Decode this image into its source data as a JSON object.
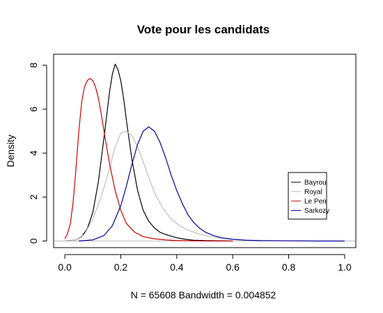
{
  "chart_data": {
    "type": "line",
    "title": "Vote pour les candidats",
    "xlabel": "N = 65608   Bandwidth = 0.004852",
    "ylabel": "Density",
    "xlim": [
      -0.04,
      1.04
    ],
    "ylim": [
      -0.3,
      8.5
    ],
    "x_ticks": [
      0.0,
      0.2,
      0.4,
      0.6,
      0.8,
      1.0
    ],
    "x_tick_labels": [
      "0.0",
      "0.2",
      "0.4",
      "0.6",
      "0.8",
      "1.0"
    ],
    "y_ticks": [
      0,
      2,
      4,
      6,
      8
    ],
    "y_tick_labels": [
      "0",
      "2",
      "4",
      "6",
      "8"
    ],
    "zero_line_color": "#bebebe",
    "legend": {
      "position": "right",
      "entries": [
        "Bayrou",
        "Royal",
        "Le Pen",
        "Sarkozy"
      ]
    },
    "series": [
      {
        "name": "Bayrou",
        "color": "#000000",
        "x": [
          0.0,
          0.04,
          0.06,
          0.08,
          0.1,
          0.12,
          0.14,
          0.16,
          0.17,
          0.18,
          0.19,
          0.2,
          0.21,
          0.22,
          0.24,
          0.26,
          0.28,
          0.3,
          0.32,
          0.34,
          0.36,
          0.38,
          0.4,
          0.43,
          0.46,
          0.5,
          0.55,
          0.6
        ],
        "y": [
          0.0,
          0.05,
          0.2,
          0.55,
          1.3,
          2.7,
          4.7,
          6.8,
          7.6,
          8.05,
          7.8,
          7.3,
          6.5,
          5.5,
          3.7,
          2.3,
          1.4,
          0.9,
          0.6,
          0.4,
          0.3,
          0.22,
          0.15,
          0.08,
          0.04,
          0.02,
          0.01,
          0.0
        ]
      },
      {
        "name": "Royal",
        "color": "#bebebe",
        "x": [
          0.0,
          0.04,
          0.07,
          0.1,
          0.13,
          0.16,
          0.18,
          0.2,
          0.22,
          0.24,
          0.26,
          0.28,
          0.3,
          0.32,
          0.35,
          0.38,
          0.41,
          0.44,
          0.48,
          0.52,
          0.56,
          0.6,
          0.65,
          0.7
        ],
        "y": [
          0.0,
          0.05,
          0.3,
          1.0,
          2.0,
          3.3,
          4.3,
          4.9,
          5.0,
          4.8,
          4.3,
          3.6,
          2.9,
          2.2,
          1.5,
          1.0,
          0.7,
          0.5,
          0.32,
          0.2,
          0.12,
          0.07,
          0.03,
          0.0
        ]
      },
      {
        "name": "Le Pen",
        "color": "#cc0000",
        "x": [
          0.0,
          0.01,
          0.02,
          0.03,
          0.04,
          0.05,
          0.06,
          0.07,
          0.08,
          0.09,
          0.1,
          0.11,
          0.12,
          0.13,
          0.14,
          0.16,
          0.18,
          0.2,
          0.22,
          0.25,
          0.28,
          0.32,
          0.36,
          0.4,
          0.45,
          0.5,
          0.6
        ],
        "y": [
          0.1,
          0.35,
          0.8,
          1.8,
          3.3,
          5.0,
          6.3,
          7.0,
          7.3,
          7.4,
          7.3,
          7.0,
          6.5,
          5.8,
          5.0,
          3.5,
          2.3,
          1.4,
          0.8,
          0.4,
          0.2,
          0.1,
          0.05,
          0.02,
          0.01,
          0.0,
          0.0
        ]
      },
      {
        "name": "Sarkozy",
        "color": "#000099",
        "x": [
          0.05,
          0.1,
          0.14,
          0.17,
          0.2,
          0.22,
          0.24,
          0.26,
          0.28,
          0.3,
          0.32,
          0.34,
          0.36,
          0.38,
          0.4,
          0.42,
          0.44,
          0.46,
          0.48,
          0.5,
          0.53,
          0.56,
          0.6,
          0.65,
          0.7,
          0.8,
          0.9,
          1.0
        ],
        "y": [
          0.0,
          0.05,
          0.25,
          0.7,
          1.6,
          2.5,
          3.5,
          4.4,
          5.0,
          5.2,
          5.0,
          4.5,
          3.8,
          3.0,
          2.3,
          1.7,
          1.2,
          0.85,
          0.6,
          0.42,
          0.25,
          0.15,
          0.08,
          0.04,
          0.02,
          0.01,
          0.0,
          0.0
        ]
      }
    ]
  }
}
